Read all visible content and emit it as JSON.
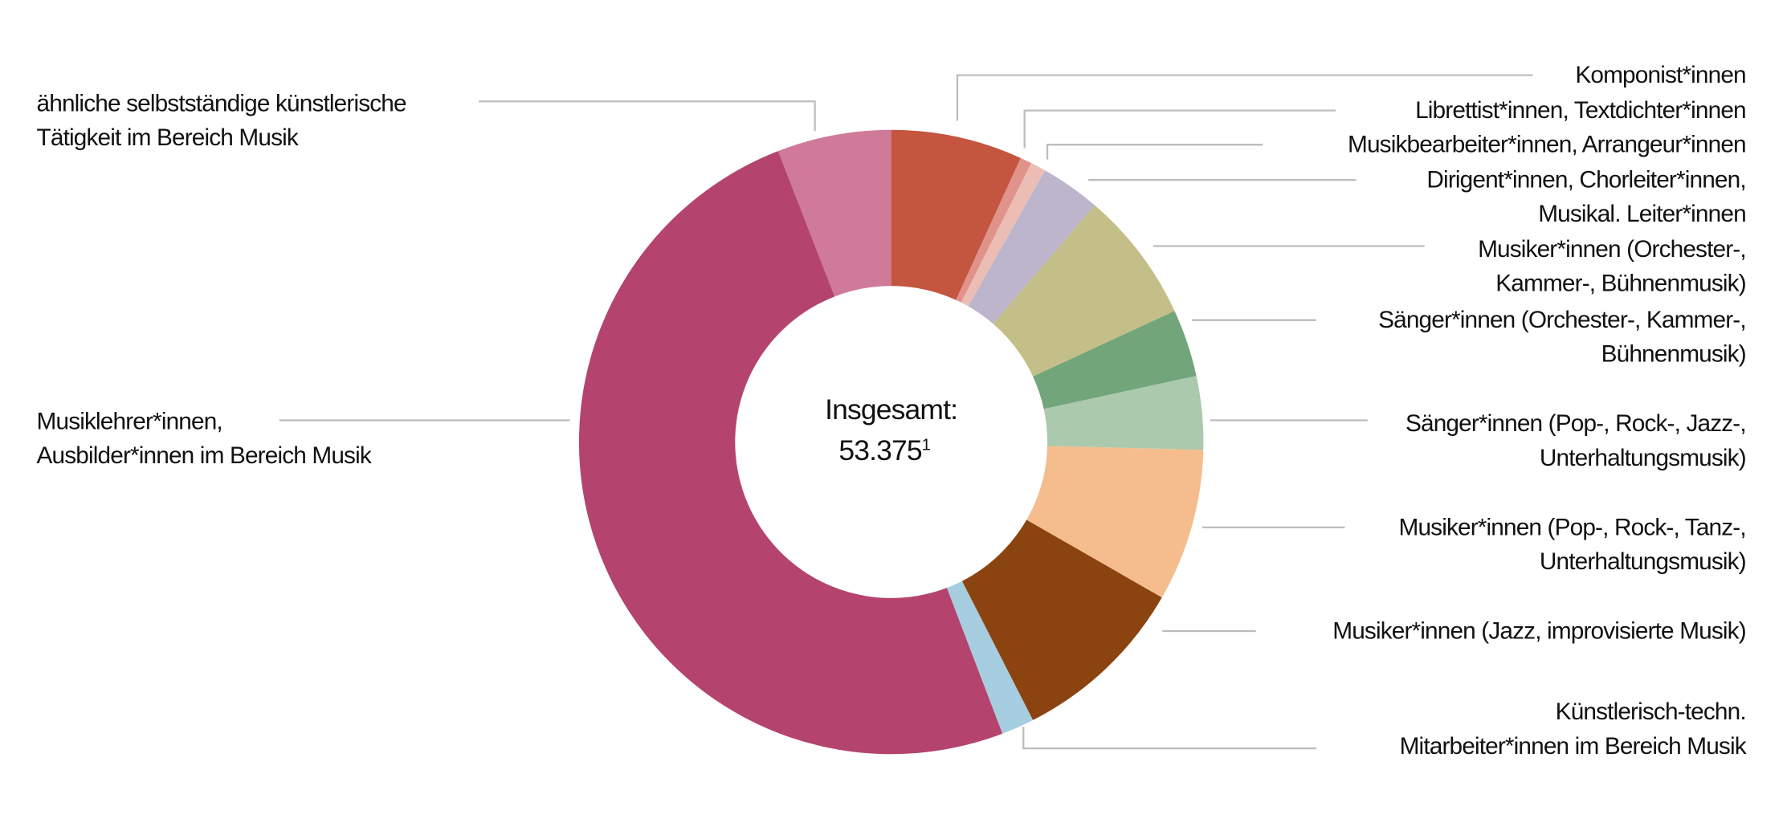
{
  "chart_data": {
    "type": "donut",
    "center_label": "Insgesamt:",
    "total_label": "53.375",
    "total_footnote": "1",
    "categories": [
      "Komponist*innen",
      "Librettist*innen, Textdichter*innen",
      "Musikbearbeiter*innen, Arrangeur*innen",
      "Dirigent*innen, Chorleiter*innen,\nMusikal. Leiter*innen",
      "Musiker*innen (Orchester-,\nKammer-, Bühnenmusik)",
      "Sänger*innen (Orchester-, Kammer-,\nBühnenmusik)",
      "Sänger*innen (Pop-, Rock-, Jazz-,\nUnterhaltungsmusik)",
      "Musiker*innen (Pop-, Rock-, Tanz-,\nUnterhaltungsmusik)",
      "Musiker*innen (Jazz, improvisierte Musik)",
      "Künstlerisch-techn.\nMitarbeiter*innen im Bereich Musik",
      "Musiklehrer*innen,\nAusbilder*innen im Bereich Musik",
      "ähnliche selbstständige künstlerische\nTätigkeit im Bereich Musik"
    ],
    "values": [
      6.8,
      0.6,
      0.8,
      3.1,
      6.8,
      3.5,
      3.8,
      7.9,
      9.2,
      1.7,
      49.9,
      5.9
    ],
    "colors": [
      "#c4553f",
      "#e0938a",
      "#ebbdb4",
      "#bdb5cc",
      "#c4bf88",
      "#72a57a",
      "#abc9ad",
      "#f5bd8d",
      "#8b440f",
      "#a6cde0",
      "#b4446e",
      "#cf7a99"
    ]
  }
}
